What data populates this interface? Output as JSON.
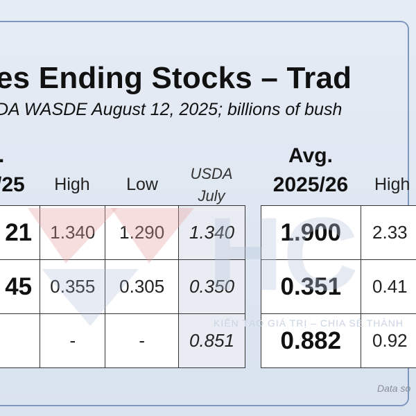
{
  "chart_data": {
    "type": "table",
    "title": "es Ending Stocks – Trad",
    "subtitle": "DA WASDE August 12, 2025; billions of bush",
    "left_block": {
      "headers": [
        {
          "line1": ".",
          "line2": "/25"
        },
        {
          "line1": "",
          "line2": "High"
        },
        {
          "line1": "",
          "line2": "Low"
        },
        {
          "line1": "USDA",
          "line2": "July"
        }
      ],
      "rows": [
        [
          "21",
          "1.340",
          "1.290",
          "1.340"
        ],
        [
          "45",
          "0.355",
          "0.305",
          "0.350"
        ],
        [
          "",
          "-",
          "-",
          "0.851"
        ]
      ]
    },
    "right_block": {
      "headers": [
        {
          "line1": "Avg.",
          "line2": "2025/26"
        },
        {
          "line1": "",
          "line2": "High"
        }
      ],
      "rows": [
        [
          "1.900",
          "2.33"
        ],
        [
          "0.351",
          "0.41"
        ],
        [
          "0.882",
          "0.92"
        ]
      ]
    }
  },
  "watermark": {
    "letters": "HC",
    "tagline": "KIẾN TẠO GIÁ TRỊ – CHIA SẺ THÀNH"
  },
  "source_note": "Data so"
}
